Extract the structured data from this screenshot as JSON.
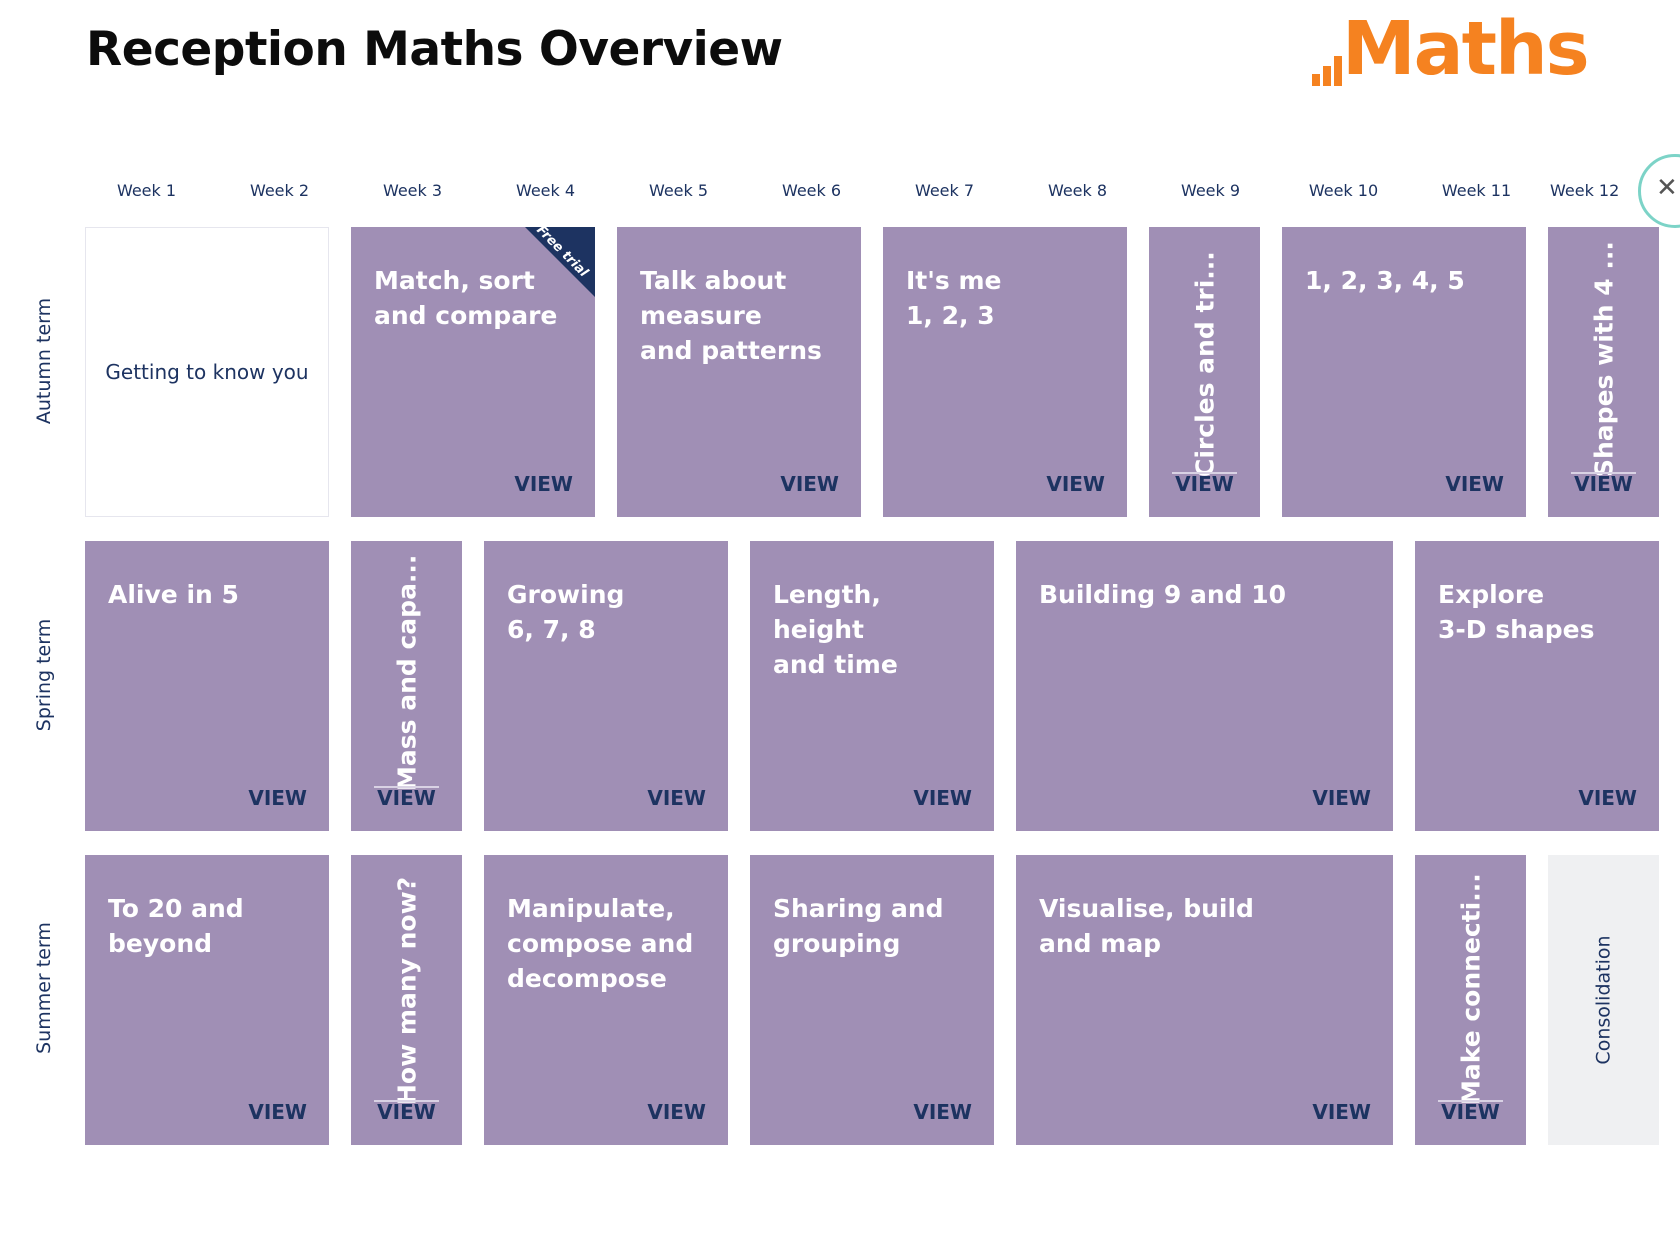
{
  "page": {
    "title": "Reception Maths Overview"
  },
  "logo": {
    "text": "Maths",
    "color": "#f58220"
  },
  "weeks": [
    "Week 1",
    "Week 2",
    "Week 3",
    "Week 4",
    "Week 5",
    "Week 6",
    "Week 7",
    "Week 8",
    "Week 9",
    "Week 10",
    "Week 11",
    "Week 12"
  ],
  "close_icon": "close-icon",
  "terms": [
    "Autumn term",
    "Spring term",
    "Summer term"
  ],
  "view_label": "VIEW",
  "autumn": {
    "getting_to_know": "Getting to know you",
    "match_sort": "Match, sort\nand compare",
    "free_trial": "Free trial",
    "talk_measure": "Talk about\nmeasure\nand patterns",
    "its_me": "It's me\n1, 2, 3",
    "circles": "Circles and tri...",
    "one_to_five": "1, 2, 3, 4, 5",
    "shapes_four": "Shapes with 4 ..."
  },
  "spring": {
    "alive": "Alive in 5",
    "mass": "Mass and capa...",
    "growing": "Growing\n6, 7, 8",
    "length": "Length, height\nand time",
    "building": "Building 9 and 10",
    "explore": "Explore\n3-D shapes"
  },
  "summer": {
    "to_20": "To 20 and\nbeyond",
    "how_many": "How many now?",
    "manipulate": "Manipulate,\ncompose and\ndecompose",
    "sharing": "Sharing and\ngrouping",
    "visualise": "Visualise, build\nand map",
    "make_connections": "Make connecti...",
    "consolidation": "Consolidation"
  },
  "colors": {
    "card": "#a08fb5",
    "navy": "#1d3361",
    "accent": "#f58220"
  }
}
